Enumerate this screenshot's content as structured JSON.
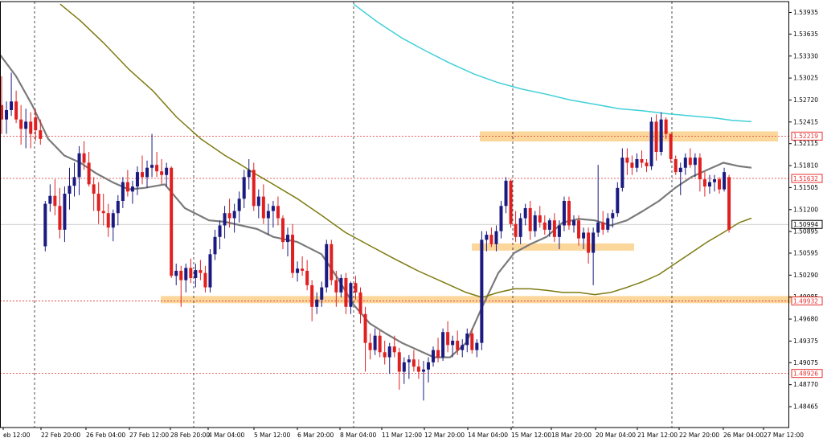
{
  "chart_data": {
    "type": "candlestick",
    "instrument_axis": "price",
    "ylim": [
      1.48465,
      1.5405
    ],
    "y_ticks": [
      1.53935,
      1.53635,
      1.5333,
      1.53025,
      1.5272,
      1.52415,
      1.52115,
      1.5181,
      1.51505,
      1.512,
      1.50895,
      1.50595,
      1.5029,
      1.49985,
      1.4968,
      1.49375,
      1.49075,
      1.4877,
      1.48465
    ],
    "y_tick_labels": [
      "1.53935",
      "1.53635",
      "1.53330",
      "1.53025",
      "1.52720",
      "1.52415",
      "1.52115",
      "1.51810",
      "1.51505",
      "1.51200",
      "1.50895",
      "1.50595",
      "1.50290",
      "1.49985",
      "1.49680",
      "1.49375",
      "1.49075",
      "1.48770",
      "1.48465"
    ],
    "x_labels": [
      "eb 12:00",
      "22 Feb 20:00",
      "26 Feb 04:00",
      "27 Feb 12:00",
      "28 Feb 20:00",
      "4 Mar 04:00",
      "5 Mar 12:00",
      "6 Mar 20:00",
      "8 Mar 04:00",
      "11 Mar 12:00",
      "12 Mar 20:00",
      "14 Mar 04:00",
      "15 Mar 12:00",
      "18 Mar 20:00",
      "20 Mar 04:00",
      "21 Mar 12:00",
      "22 Mar 20:00",
      "26 Mar 04:00",
      "27 Mar 12:00"
    ],
    "x_label_pos": [
      8,
      55,
      111,
      165,
      216,
      263,
      320,
      374,
      427,
      479,
      532,
      586,
      640,
      690,
      745,
      797,
      849,
      904,
      954
    ],
    "vertical_separators": [
      43,
      241,
      440,
      638,
      836
    ],
    "price_levels": [
      {
        "value": 1.52219,
        "label": "1.52219",
        "color": "#e53030"
      },
      {
        "value": 1.51632,
        "label": "1.51632",
        "color": "#e53030"
      },
      {
        "value": 1.49932,
        "label": "1.49932",
        "color": "#e53030"
      },
      {
        "value": 1.48926,
        "label": "1.48926",
        "color": "#e53030"
      }
    ],
    "current_price": {
      "value": 1.50994,
      "label": "1.50994"
    },
    "zones": [
      {
        "x0": 597,
        "x1": 968,
        "y_low": 1.52145,
        "y_high": 1.52285,
        "color": "#fbd79c"
      },
      {
        "x0": 587,
        "x1": 789,
        "y_low": 1.5063,
        "y_high": 1.5073,
        "color": "#fbd79c"
      },
      {
        "x0": 200,
        "x1": 1010,
        "y_low": 1.499,
        "y_high": 1.5,
        "color": "#fbd79c"
      }
    ],
    "candles": [
      [
        1.5265,
        1.5305,
        1.5225,
        1.5245
      ],
      [
        1.5245,
        1.527,
        1.5225,
        1.5258
      ],
      [
        1.5258,
        1.531,
        1.525,
        1.527
      ],
      [
        1.527,
        1.5285,
        1.524,
        1.5245
      ],
      [
        1.5245,
        1.5265,
        1.521,
        1.5232
      ],
      [
        1.5232,
        1.526,
        1.5205,
        1.5242
      ],
      [
        1.5242,
        1.5255,
        1.5205,
        1.5225
      ],
      [
        1.5248,
        1.526,
        1.5215,
        1.523
      ],
      [
        1.523,
        1.5245,
        1.521,
        1.5218
      ],
      [
        1.5069,
        1.5132,
        1.5062,
        1.5128
      ],
      [
        1.5128,
        1.5155,
        1.5117,
        1.5139
      ],
      [
        1.5139,
        1.5162,
        1.5112,
        1.5125
      ],
      [
        1.5125,
        1.515,
        1.508,
        1.5092
      ],
      [
        1.5092,
        1.5152,
        1.5075,
        1.5142
      ],
      [
        1.5142,
        1.5178,
        1.512,
        1.5153
      ],
      [
        1.5153,
        1.5185,
        1.5138,
        1.5165
      ],
      [
        1.5165,
        1.5208,
        1.514,
        1.5198
      ],
      [
        1.5198,
        1.5215,
        1.5175,
        1.5185
      ],
      [
        1.5185,
        1.52,
        1.5152,
        1.5155
      ],
      [
        1.5155,
        1.5165,
        1.5118,
        1.5142
      ],
      [
        1.5142,
        1.5158,
        1.51,
        1.5118
      ],
      [
        1.5118,
        1.5142,
        1.5098,
        1.5115
      ],
      [
        1.5115,
        1.5128,
        1.5082,
        1.5095
      ],
      [
        1.5095,
        1.512,
        1.5076,
        1.5115
      ],
      [
        1.5115,
        1.514,
        1.5098,
        1.5132
      ],
      [
        1.5132,
        1.5165,
        1.5122,
        1.5158
      ],
      [
        1.5158,
        1.5175,
        1.5138,
        1.5145
      ],
      [
        1.5145,
        1.516,
        1.5128,
        1.5152
      ],
      [
        1.5152,
        1.518,
        1.514,
        1.5172
      ],
      [
        1.5172,
        1.5195,
        1.5155,
        1.5165
      ],
      [
        1.5165,
        1.5188,
        1.515,
        1.5178
      ],
      [
        1.5178,
        1.5225,
        1.5165,
        1.5182
      ],
      [
        1.5182,
        1.52,
        1.5165,
        1.5173
      ],
      [
        1.5173,
        1.519,
        1.5155,
        1.5168
      ],
      [
        1.5168,
        1.5185,
        1.5152,
        1.5178
      ],
      [
        1.5178,
        1.518,
        1.5025,
        1.5028
      ],
      [
        1.5028,
        1.5045,
        1.5015,
        1.5035
      ],
      [
        1.5035,
        1.5042,
        1.4985,
        1.5022
      ],
      [
        1.5022,
        1.5045,
        1.5005,
        1.5039
      ],
      [
        1.5039,
        1.5052,
        1.5018,
        1.5025
      ],
      [
        1.5025,
        1.5045,
        1.5012,
        1.5036
      ],
      [
        1.5036,
        1.505,
        1.5022,
        1.5032
      ],
      [
        1.5032,
        1.5042,
        1.5005,
        1.5012
      ],
      [
        1.5012,
        1.5065,
        1.5005,
        1.5058
      ],
      [
        1.5058,
        1.5092,
        1.505,
        1.5082
      ],
      [
        1.5082,
        1.5105,
        1.5065,
        1.5098
      ],
      [
        1.5098,
        1.5125,
        1.508,
        1.5115
      ],
      [
        1.5115,
        1.5135,
        1.5095,
        1.5108
      ],
      [
        1.5108,
        1.5128,
        1.5088,
        1.5118
      ],
      [
        1.5118,
        1.5145,
        1.5102,
        1.5135
      ],
      [
        1.5135,
        1.5175,
        1.5122,
        1.5165
      ],
      [
        1.5165,
        1.519,
        1.5148,
        1.5175
      ],
      [
        1.5175,
        1.5185,
        1.5118,
        1.5125
      ],
      [
        1.5125,
        1.5148,
        1.5108,
        1.5138
      ],
      [
        1.5138,
        1.5155,
        1.51,
        1.5108
      ],
      [
        1.5108,
        1.5128,
        1.5085,
        1.5118
      ],
      [
        1.5118,
        1.5132,
        1.5095,
        1.5125
      ],
      [
        1.5125,
        1.5138,
        1.5098,
        1.5108
      ],
      [
        1.5108,
        1.5112,
        1.5065,
        1.5075
      ],
      [
        1.5075,
        1.5095,
        1.5055,
        1.5085
      ],
      [
        1.5085,
        1.51,
        1.5025,
        1.5032
      ],
      [
        1.5032,
        1.5048,
        1.502,
        1.5038
      ],
      [
        1.5038,
        1.5055,
        1.5028,
        1.5035
      ],
      [
        1.5035,
        1.505,
        1.5008,
        1.5015
      ],
      [
        1.5015,
        1.5022,
        1.4965,
        1.4985
      ],
      [
        1.4985,
        1.5005,
        1.4975,
        1.4995
      ],
      [
        1.4995,
        1.502,
        1.4985,
        1.5012
      ],
      [
        1.5012,
        1.5078,
        1.5005,
        1.5072
      ],
      [
        1.5072,
        1.5078,
        1.5015,
        1.5022
      ],
      [
        1.5022,
        1.5035,
        1.4985,
        1.5005
      ],
      [
        1.5005,
        1.503,
        1.4998,
        1.5025
      ],
      [
        1.5025,
        1.5032,
        1.4975,
        1.4985
      ],
      [
        1.4985,
        1.502,
        1.4975,
        1.5018
      ],
      [
        1.5018,
        1.5028,
        1.4995,
        1.5005
      ],
      [
        1.5005,
        1.5012,
        1.4962,
        1.4975
      ],
      [
        1.4975,
        1.4985,
        1.4895,
        1.4935
      ],
      [
        1.4935,
        1.4948,
        1.4912,
        1.4925
      ],
      [
        1.4925,
        1.4955,
        1.4918,
        1.4945
      ],
      [
        1.4945,
        1.4952,
        1.4915,
        1.4922
      ],
      [
        1.4922,
        1.4938,
        1.4905,
        1.4915
      ],
      [
        1.4915,
        1.4935,
        1.4892,
        1.493
      ],
      [
        1.493,
        1.4945,
        1.4915,
        1.4922
      ],
      [
        1.4922,
        1.4928,
        1.487,
        1.4895
      ],
      [
        1.4895,
        1.4915,
        1.4878,
        1.4908
      ],
      [
        1.4908,
        1.4918,
        1.4885,
        1.4912
      ],
      [
        1.4912,
        1.4925,
        1.4895,
        1.4902
      ],
      [
        1.4902,
        1.4912,
        1.4885,
        1.4895
      ],
      [
        1.4895,
        1.491,
        1.4855,
        1.4898
      ],
      [
        1.4898,
        1.4915,
        1.488,
        1.4908
      ],
      [
        1.4908,
        1.493,
        1.4902,
        1.4925
      ],
      [
        1.4925,
        1.4942,
        1.4908,
        1.4915
      ],
      [
        1.4915,
        1.4955,
        1.491,
        1.495
      ],
      [
        1.495,
        1.4965,
        1.4922,
        1.4932
      ],
      [
        1.4932,
        1.4945,
        1.4915,
        1.4938
      ],
      [
        1.4938,
        1.4952,
        1.4918,
        1.4925
      ],
      [
        1.4925,
        1.494,
        1.4915,
        1.4932
      ],
      [
        1.4932,
        1.4955,
        1.4922,
        1.4948
      ],
      [
        1.4948,
        1.4955,
        1.492,
        1.4925
      ],
      [
        1.4925,
        1.494,
        1.4915,
        1.4935
      ],
      [
        1.4935,
        1.509,
        1.4925,
        1.5078
      ],
      [
        1.5078,
        1.509,
        1.5062,
        1.5085
      ],
      [
        1.5085,
        1.5095,
        1.5068,
        1.5072
      ],
      [
        1.5072,
        1.5098,
        1.5062,
        1.509
      ],
      [
        1.509,
        1.5132,
        1.508,
        1.5125
      ],
      [
        1.5125,
        1.5165,
        1.5115,
        1.516
      ],
      [
        1.516,
        1.5162,
        1.5095,
        1.51
      ],
      [
        1.51,
        1.5118,
        1.5075,
        1.5082
      ],
      [
        1.5082,
        1.5115,
        1.5072,
        1.5108
      ],
      [
        1.5108,
        1.5128,
        1.5098,
        1.5122
      ],
      [
        1.5122,
        1.5132,
        1.5078,
        1.509
      ],
      [
        1.509,
        1.5118,
        1.5082,
        1.5112
      ],
      [
        1.5112,
        1.5125,
        1.5095,
        1.5102
      ],
      [
        1.5102,
        1.5112,
        1.5085,
        1.5092
      ],
      [
        1.5092,
        1.5108,
        1.5082,
        1.5105
      ],
      [
        1.5105,
        1.5115,
        1.5075,
        1.5082
      ],
      [
        1.5082,
        1.5105,
        1.5065,
        1.5098
      ],
      [
        1.5098,
        1.5138,
        1.509,
        1.5132
      ],
      [
        1.5132,
        1.5138,
        1.5092,
        1.5098
      ],
      [
        1.5098,
        1.5112,
        1.5088,
        1.5105
      ],
      [
        1.5105,
        1.5112,
        1.507,
        1.508
      ],
      [
        1.508,
        1.5095,
        1.5065,
        1.5088
      ],
      [
        1.5088,
        1.5095,
        1.5045,
        1.506
      ],
      [
        1.506,
        1.5095,
        1.5015,
        1.5088
      ],
      [
        1.5088,
        1.5182,
        1.5082,
        1.5102
      ],
      [
        1.5102,
        1.5118,
        1.5085,
        1.5092
      ],
      [
        1.5092,
        1.5115,
        1.5088,
        1.5108
      ],
      [
        1.5108,
        1.512,
        1.5095,
        1.5115
      ],
      [
        1.5115,
        1.5158,
        1.511,
        1.515
      ],
      [
        1.515,
        1.5205,
        1.5145,
        1.5192
      ],
      [
        1.5192,
        1.5205,
        1.5168,
        1.5185
      ],
      [
        1.5185,
        1.5195,
        1.5168,
        1.5178
      ],
      [
        1.5178,
        1.5198,
        1.5172,
        1.519
      ],
      [
        1.519,
        1.5202,
        1.5178,
        1.5185
      ],
      [
        1.5185,
        1.519,
        1.5172,
        1.518
      ],
      [
        1.518,
        1.5248,
        1.5175,
        1.5242
      ],
      [
        1.5242,
        1.5252,
        1.5188,
        1.52
      ],
      [
        1.52,
        1.5255,
        1.5195,
        1.5245
      ],
      [
        1.5245,
        1.5248,
        1.5218,
        1.5225
      ],
      [
        1.5225,
        1.5225,
        1.5185,
        1.519
      ],
      [
        1.519,
        1.5195,
        1.5168,
        1.5172
      ],
      [
        1.5172,
        1.5185,
        1.514,
        1.5178
      ],
      [
        1.5178,
        1.5198,
        1.5168,
        1.5192
      ],
      [
        1.5192,
        1.5205,
        1.5178,
        1.5182
      ],
      [
        1.5182,
        1.5198,
        1.5165,
        1.5192
      ],
      [
        1.5192,
        1.5198,
        1.5145,
        1.5162
      ],
      [
        1.5162,
        1.5172,
        1.5138,
        1.5152
      ],
      [
        1.5152,
        1.5168,
        1.5142,
        1.5158
      ],
      [
        1.5158,
        1.5168,
        1.5145,
        1.5162
      ],
      [
        1.5162,
        1.5165,
        1.5142,
        1.5148
      ],
      [
        1.5148,
        1.5178,
        1.5145,
        1.5172
      ],
      [
        1.5165,
        1.5168,
        1.5088,
        1.5092
      ]
    ],
    "candle_x": {
      "start": 2,
      "step": 6.034
    },
    "bull_color": "#1a1a80",
    "bear_color": "#e02020",
    "moving_averages": [
      {
        "color": "#7a7a7a",
        "width": 2.2,
        "x": [
          0,
          20,
          40,
          60,
          80,
          100,
          120,
          140,
          160,
          180,
          205,
          230,
          260,
          280,
          300,
          320,
          340,
          370,
          400,
          420,
          440,
          460,
          480,
          500,
          520,
          540,
          560,
          580,
          600,
          620,
          640,
          660,
          680,
          700,
          720,
          740,
          760,
          780,
          800,
          820,
          840,
          860,
          880,
          900,
          920,
          935
        ],
        "y": [
          1.5335,
          1.5305,
          1.5265,
          1.5218,
          1.5195,
          1.5185,
          1.517,
          1.5158,
          1.5148,
          1.515,
          1.5155,
          1.5122,
          1.5105,
          1.5103,
          1.5098,
          1.5093,
          1.5082,
          1.5075,
          1.5058,
          1.5025,
          1.4988,
          1.4962,
          1.4948,
          1.4935,
          1.4925,
          1.4915,
          1.4915,
          1.4935,
          1.4985,
          1.5032,
          1.506,
          1.5072,
          1.5082,
          1.5102,
          1.5107,
          1.5105,
          1.5098,
          1.5105,
          1.5118,
          1.5132,
          1.515,
          1.5165,
          1.5175,
          1.5185,
          1.518,
          1.5178
        ]
      },
      {
        "color": "#7d7a10",
        "width": 1.5,
        "x": [
          75,
          100,
          130,
          160,
          190,
          220,
          250,
          280,
          300,
          320,
          340,
          370,
          400,
          430,
          460,
          490,
          520,
          550,
          580,
          600,
          620,
          640,
          660,
          680,
          700,
          720,
          740,
          760,
          780,
          800,
          820,
          840,
          860,
          880,
          900,
          920,
          935
        ],
        "y": [
          1.5405,
          1.5382,
          1.535,
          1.5315,
          1.5285,
          1.5248,
          1.5218,
          1.5195,
          1.5182,
          1.5168,
          1.5155,
          1.5135,
          1.5112,
          1.5088,
          1.507,
          1.5052,
          1.5035,
          1.502,
          1.5005,
          1.4998,
          1.5005,
          1.501,
          1.501,
          1.5008,
          1.5005,
          1.5005,
          1.5002,
          1.5005,
          1.5012,
          1.502,
          1.503,
          1.5045,
          1.506,
          1.5075,
          1.5088,
          1.5102,
          1.5108
        ]
      },
      {
        "color": "#40d0d8",
        "width": 1.5,
        "x": [
          440,
          470,
          500,
          530,
          560,
          590,
          620,
          650,
          680,
          710,
          740,
          770,
          800,
          830,
          860,
          890,
          910,
          935
        ],
        "y": [
          1.5405,
          1.538,
          1.5358,
          1.534,
          1.5323,
          1.5308,
          1.5296,
          1.5287,
          1.528,
          1.5272,
          1.5266,
          1.526,
          1.5257,
          1.5253,
          1.525,
          1.5247,
          1.5244,
          1.5242
        ]
      }
    ]
  }
}
